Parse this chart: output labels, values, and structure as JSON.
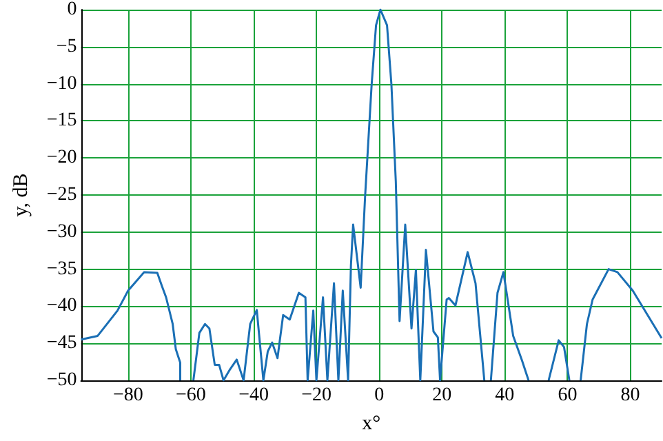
{
  "chart_data": {
    "type": "line",
    "xlabel": "x°",
    "ylabel": "y, dB",
    "xlim": [
      -95,
      90
    ],
    "ylim": [
      -50,
      0
    ],
    "xticks": [
      -80,
      -60,
      -40,
      -20,
      0,
      20,
      40,
      60,
      80
    ],
    "yticks": [
      -50,
      -45,
      -40,
      -35,
      -30,
      -25,
      -20,
      -15,
      -10,
      -5,
      0
    ],
    "grid": true,
    "marker": "none",
    "line_style": "solid",
    "series": [
      {
        "color": "#1a6fb5",
        "x": [
          -95,
          -89.7,
          -83.4,
          -80,
          -74.9,
          -70.7,
          -69.3,
          -67.9,
          -65.8,
          -64.8,
          -63.4,
          -63.4,
          -61,
          -59.2,
          -57.3,
          -55.5,
          -54.1,
          -52.4,
          -51,
          -49.6,
          -47.5,
          -45.4,
          -43.2,
          -41.1,
          -39,
          -36.9,
          -35.5,
          -34.1,
          -32.4,
          -30.6,
          -28.5,
          -25.6,
          -23.5,
          -22.8,
          -21,
          -20,
          -17.9,
          -16.5,
          -14.4,
          -13,
          -11.6,
          -9.9,
          -9,
          -8.3,
          -5.9,
          -4.5,
          -2.4,
          -1,
          0.4,
          2.5,
          3.9,
          5.3,
          6.5,
          8.3,
          10.3,
          11.7,
          13.1,
          14.9,
          17.3,
          18.7,
          19.4,
          21.5,
          22.2,
          24.3,
          28.2,
          30.7,
          33.5,
          34.5,
          35.6,
          37.7,
          39.6,
          42.7,
          45.5,
          47.6,
          51,
          54,
          57.2,
          58.9,
          60.6,
          62,
          64.2,
          66.2,
          68,
          73.1,
          75.9,
          80.8,
          90
        ],
        "values": [
          -44.5,
          -44,
          -40.6,
          -37.9,
          -35.4,
          -35.5,
          -37.2,
          -38.8,
          -42.4,
          -45.8,
          -47.6,
          -50,
          null,
          -50,
          -43.6,
          -42.4,
          -43,
          -47.9,
          -47.9,
          -50,
          -48.5,
          -47.2,
          -50,
          -42.4,
          -40.5,
          -50,
          -46.1,
          -44.9,
          -47,
          -41.2,
          -41.8,
          -38.2,
          -38.8,
          -50,
          -40.6,
          -50,
          -38.8,
          -50,
          -36.9,
          -50,
          -37.9,
          -50,
          -34.5,
          -29,
          -37.5,
          -25.3,
          -10.1,
          -2.1,
          0,
          -2.1,
          -10.1,
          -23.2,
          -42,
          -29,
          -43,
          -35.1,
          -50,
          -32.4,
          -43.4,
          -44.2,
          -50,
          -39.1,
          -38.9,
          -39.9,
          -32.7,
          -36.9,
          -50,
          null,
          -50,
          -38.2,
          -35.4,
          -44,
          -47.3,
          -50,
          null,
          -50,
          -44.6,
          -45.5,
          -50,
          null,
          -50,
          -42.4,
          -39.1,
          -35,
          -35.4,
          -37.9,
          -44.3
        ]
      }
    ]
  }
}
